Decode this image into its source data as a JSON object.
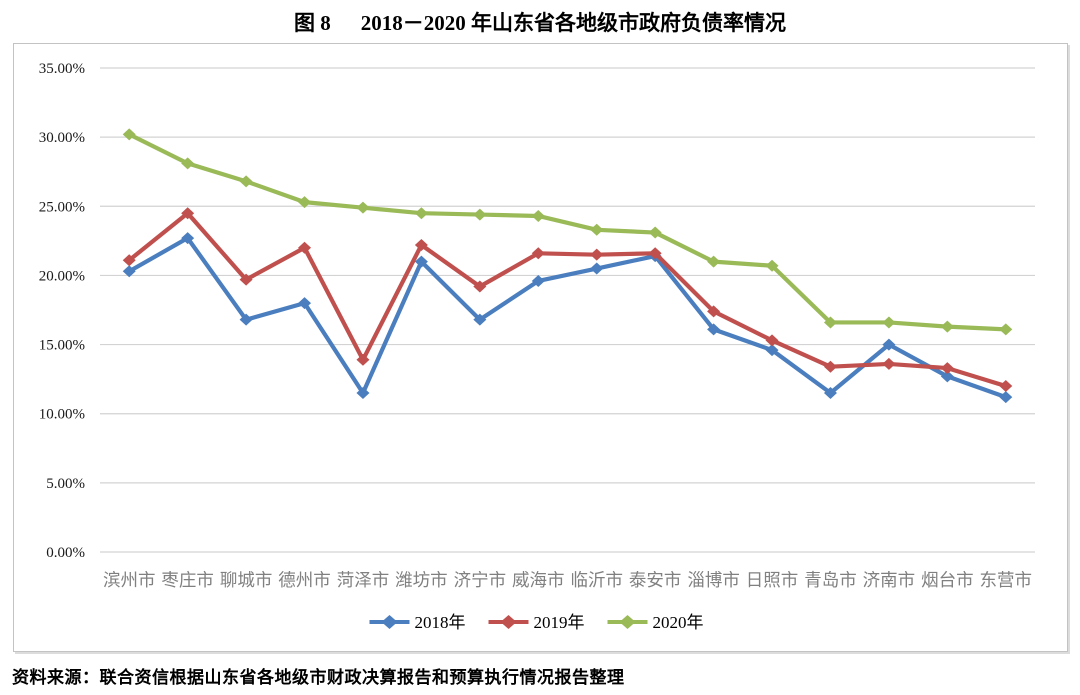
{
  "title": {
    "figure_label": "图 8",
    "text": "2018－2020 年山东省各地级市政府负债率情况"
  },
  "source": "资料来源：联合资信根据山东省各地级市财政决算报告和预算执行情况报告整理",
  "colors": {
    "series_2018": "#4A7EBE",
    "series_2019": "#C0504D",
    "series_2020": "#9ABA58",
    "gridline": "#d3d3d3",
    "chart_border": "#c3c3c3",
    "ytick_text": "#1a1a1a",
    "xtick_text": "#808080",
    "legend_text": "#000000"
  },
  "chart_data": {
    "type": "line",
    "title": "图 8 2018－2020 年山东省各地级市政府负债率情况",
    "xlabel": "",
    "ylabel": "",
    "ylim": [
      0,
      35
    ],
    "ytick_step": 5,
    "ytick_labels": [
      "0.00%",
      "5.00%",
      "10.00%",
      "15.00%",
      "20.00%",
      "25.00%",
      "30.00%",
      "35.00%"
    ],
    "grid": "horizontal",
    "legend_position": "bottom",
    "marker": "diamond",
    "categories": [
      "滨州市",
      "枣庄市",
      "聊城市",
      "德州市",
      "菏泽市",
      "潍坊市",
      "济宁市",
      "威海市",
      "临沂市",
      "泰安市",
      "淄博市",
      "日照市",
      "青岛市",
      "济南市",
      "烟台市",
      "东营市"
    ],
    "series": [
      {
        "name": "2018年",
        "color": "#4A7EBE",
        "values": [
          20.3,
          22.7,
          16.8,
          18.0,
          11.5,
          21.0,
          16.8,
          19.6,
          20.5,
          21.4,
          16.1,
          14.6,
          11.5,
          15.0,
          12.7,
          11.2
        ]
      },
      {
        "name": "2019年",
        "color": "#C0504D",
        "values": [
          21.1,
          24.5,
          19.7,
          22.0,
          13.9,
          22.2,
          19.2,
          21.6,
          21.5,
          21.6,
          17.4,
          15.3,
          13.4,
          13.6,
          13.3,
          12.0
        ]
      },
      {
        "name": "2020年",
        "color": "#9ABA58",
        "values": [
          30.2,
          28.1,
          26.8,
          25.3,
          24.9,
          24.5,
          24.4,
          24.3,
          23.3,
          23.1,
          21.0,
          20.7,
          16.6,
          16.6,
          16.3,
          16.1
        ]
      }
    ]
  }
}
